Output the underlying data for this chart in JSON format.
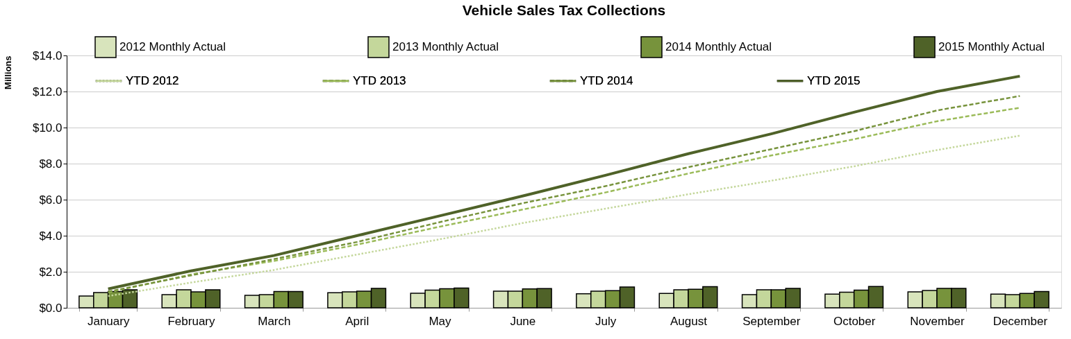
{
  "chart_data": {
    "type": "bar",
    "title": "Vehicle Sales Tax Collections",
    "ylabel": "Millions",
    "categories": [
      "January",
      "February",
      "March",
      "April",
      "May",
      "June",
      "July",
      "August",
      "September",
      "October",
      "November",
      "December"
    ],
    "ylim": [
      0,
      14
    ],
    "yticks": [
      {
        "value": 0,
        "label": "$0.0"
      },
      {
        "value": 2,
        "label": "$2.0"
      },
      {
        "value": 4,
        "label": "$4.0"
      },
      {
        "value": 6,
        "label": "$6.0"
      },
      {
        "value": 8,
        "label": "$8.0"
      },
      {
        "value": 10,
        "label": "$10.0"
      },
      {
        "value": 12,
        "label": "$12.0"
      },
      {
        "value": 14,
        "label": "$14.0"
      }
    ],
    "grid": "y",
    "legend": "top",
    "marker": "none",
    "series": [
      {
        "name": "2012 Monthly Actual",
        "type": "bar",
        "color": "#d8e4bc",
        "values": [
          0.65,
          0.73,
          0.69,
          0.84,
          0.81,
          0.92,
          0.78,
          0.8,
          0.73,
          0.76,
          0.88,
          0.76
        ]
      },
      {
        "name": "2013 Monthly Actual",
        "type": "bar",
        "color": "#c4d79b",
        "values": [
          0.85,
          1.0,
          0.73,
          0.88,
          0.98,
          0.92,
          0.92,
          1.0,
          1.0,
          0.87,
          0.96,
          0.73
        ]
      },
      {
        "name": "2014 Monthly Actual",
        "type": "bar",
        "color": "#77933c",
        "values": [
          0.9,
          0.88,
          0.9,
          0.92,
          1.06,
          1.05,
          0.95,
          1.03,
          1.0,
          0.98,
          1.08,
          0.8
        ]
      },
      {
        "name": "2015 Monthly Actual",
        "type": "bar",
        "color": "#4f6228",
        "values": [
          1.0,
          1.0,
          0.9,
          1.08,
          1.1,
          1.07,
          1.15,
          1.17,
          1.08,
          1.18,
          1.08,
          0.9
        ]
      },
      {
        "name": "YTD 2012",
        "type": "line",
        "color": "#c4d79b",
        "line_style": "dotted",
        "values": [
          0.65,
          1.4,
          2.1,
          2.95,
          3.8,
          4.7,
          5.5,
          6.3,
          7.05,
          7.85,
          8.75,
          9.55
        ]
      },
      {
        "name": "YTD 2013",
        "type": "line",
        "color": "#9bbb59",
        "line_style": "dashed",
        "values": [
          0.85,
          1.85,
          2.6,
          3.5,
          4.5,
          5.45,
          6.4,
          7.45,
          8.45,
          9.35,
          10.35,
          11.1
        ]
      },
      {
        "name": "YTD 2014",
        "type": "line",
        "color": "#77933c",
        "line_style": "dashed",
        "values": [
          0.9,
          1.8,
          2.7,
          3.65,
          4.75,
          5.8,
          6.75,
          7.8,
          8.8,
          9.8,
          10.95,
          11.75
        ]
      },
      {
        "name": "YTD 2015",
        "type": "line",
        "color": "#4f6228",
        "line_style": "solid",
        "values": [
          1.05,
          2.05,
          2.9,
          4.0,
          5.1,
          6.2,
          7.35,
          8.55,
          9.65,
          10.85,
          12.0,
          12.85
        ]
      }
    ]
  }
}
